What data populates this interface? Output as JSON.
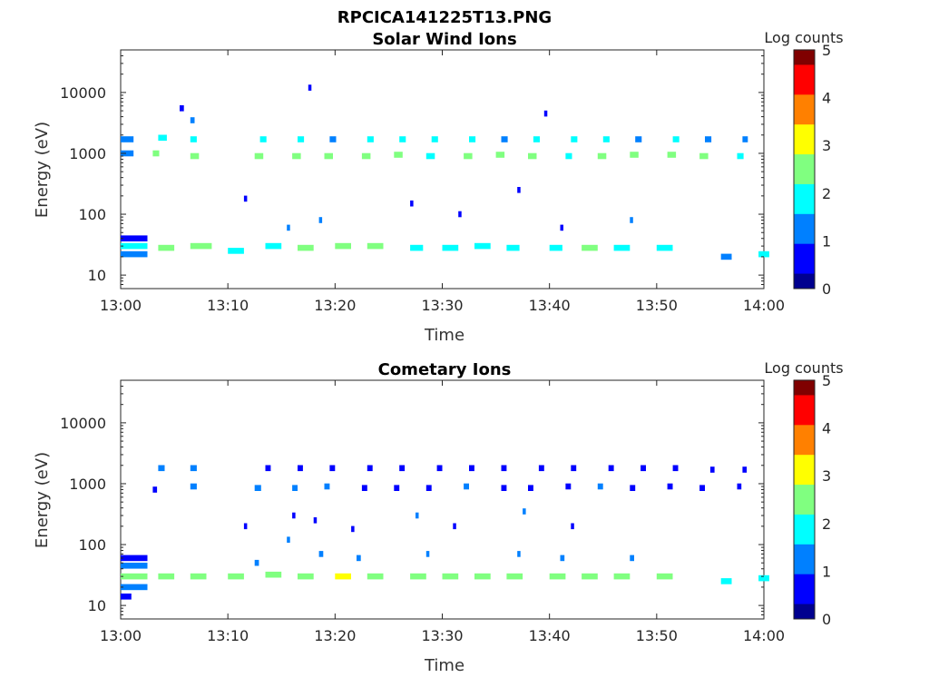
{
  "figure": {
    "title": "RPCICA141225T13.PNG"
  },
  "colormap": [
    "#00008f",
    "#0000ff",
    "#0080ff",
    "#00ffff",
    "#80ff80",
    "#ffff00",
    "#ff8000",
    "#ff0000",
    "#800000"
  ],
  "chart_data": [
    {
      "type": "heatmap",
      "title": "Solar Wind Ions",
      "xlabel": "Time",
      "ylabel": "Energy (eV)",
      "y_scale": "log",
      "ylim": [
        6,
        50000
      ],
      "xlim": [
        "13:00",
        "14:00"
      ],
      "x_ticks": [
        "13:00",
        "13:10",
        "13:20",
        "13:30",
        "13:40",
        "13:50",
        "14:00"
      ],
      "y_ticks": [
        "10",
        "100",
        "1000",
        "10000"
      ],
      "colorbar": {
        "label": "Log counts",
        "range": [
          0,
          5
        ],
        "ticks": [
          "0",
          "1",
          "2",
          "3",
          "4",
          "5"
        ]
      },
      "cells": [
        [
          0.0,
          2.5,
          30,
          2.0
        ],
        [
          0.0,
          2.5,
          22,
          1.2
        ],
        [
          0.0,
          2.5,
          40,
          0.8
        ],
        [
          3.5,
          1.5,
          28,
          2.2
        ],
        [
          6.5,
          2.0,
          30,
          2.5
        ],
        [
          10.0,
          1.5,
          25,
          1.8
        ],
        [
          13.5,
          1.5,
          30,
          2.0
        ],
        [
          16.5,
          1.5,
          28,
          2.3
        ],
        [
          20.0,
          1.5,
          30,
          2.2
        ],
        [
          23.0,
          1.5,
          30,
          2.8
        ],
        [
          27.0,
          1.2,
          28,
          2.0
        ],
        [
          30.0,
          1.5,
          28,
          1.8
        ],
        [
          33.0,
          1.5,
          30,
          1.6
        ],
        [
          36.0,
          1.2,
          28,
          2.0
        ],
        [
          40.0,
          1.2,
          28,
          2.0
        ],
        [
          43.0,
          1.5,
          28,
          2.2
        ],
        [
          46.0,
          1.5,
          28,
          2.0
        ],
        [
          50.0,
          1.5,
          28,
          1.8
        ],
        [
          56.0,
          1.0,
          20,
          1.2
        ],
        [
          59.5,
          1.0,
          22,
          1.8
        ],
        [
          0.0,
          1.2,
          1000,
          1.5
        ],
        [
          3.0,
          0.6,
          1000,
          2.2
        ],
        [
          6.5,
          0.8,
          900,
          2.8
        ],
        [
          12.5,
          0.8,
          900,
          2.3
        ],
        [
          16.0,
          0.8,
          900,
          2.5
        ],
        [
          19.0,
          0.8,
          900,
          2.4
        ],
        [
          22.5,
          0.8,
          900,
          2.6
        ],
        [
          25.5,
          0.8,
          950,
          2.3
        ],
        [
          28.5,
          0.8,
          900,
          2.0
        ],
        [
          32.0,
          0.8,
          900,
          2.4
        ],
        [
          35.0,
          0.8,
          950,
          2.3
        ],
        [
          38.0,
          0.8,
          900,
          2.5
        ],
        [
          41.5,
          0.6,
          900,
          2.0
        ],
        [
          44.5,
          0.8,
          900,
          2.6
        ],
        [
          47.5,
          0.8,
          950,
          2.2
        ],
        [
          51.0,
          0.8,
          950,
          2.5
        ],
        [
          54.0,
          0.8,
          900,
          2.3
        ],
        [
          57.5,
          0.6,
          900,
          1.6
        ],
        [
          0.0,
          1.2,
          1700,
          1.0
        ],
        [
          3.5,
          0.8,
          1800,
          1.8
        ],
        [
          6.5,
          0.6,
          1700,
          2.0
        ],
        [
          13.0,
          0.6,
          1700,
          1.6
        ],
        [
          16.5,
          0.6,
          1700,
          1.8
        ],
        [
          19.5,
          0.6,
          1700,
          1.5
        ],
        [
          23.0,
          0.6,
          1700,
          1.7
        ],
        [
          26.0,
          0.6,
          1700,
          1.6
        ],
        [
          29.0,
          0.6,
          1700,
          1.8
        ],
        [
          32.5,
          0.6,
          1700,
          1.6
        ],
        [
          35.5,
          0.6,
          1700,
          1.5
        ],
        [
          38.5,
          0.6,
          1700,
          1.7
        ],
        [
          42.0,
          0.6,
          1700,
          1.6
        ],
        [
          45.0,
          0.6,
          1700,
          1.8
        ],
        [
          48.0,
          0.6,
          1700,
          1.5
        ],
        [
          51.5,
          0.6,
          1700,
          1.6
        ],
        [
          54.5,
          0.6,
          1700,
          1.4
        ],
        [
          58.0,
          0.5,
          1700,
          1.0
        ],
        [
          6.5,
          0.4,
          3500,
          1.0
        ],
        [
          5.5,
          0.4,
          5500,
          0.8
        ],
        [
          17.5,
          0.3,
          12000,
          0.8
        ],
        [
          39.5,
          0.3,
          4500,
          0.8
        ],
        [
          15.5,
          0.3,
          60,
          1.0
        ],
        [
          18.5,
          0.3,
          80,
          1.0
        ],
        [
          27.0,
          0.3,
          150,
          0.8
        ],
        [
          37.0,
          0.3,
          250,
          0.9
        ],
        [
          47.5,
          0.3,
          80,
          1.2
        ],
        [
          11.5,
          0.3,
          180,
          0.8
        ],
        [
          31.5,
          0.3,
          100,
          0.8
        ],
        [
          41.0,
          0.3,
          60,
          0.9
        ]
      ]
    },
    {
      "type": "heatmap",
      "title": "Cometary Ions",
      "xlabel": "Time",
      "ylabel": "Energy (eV)",
      "y_scale": "log",
      "ylim": [
        6,
        50000
      ],
      "xlim": [
        "13:00",
        "14:00"
      ],
      "x_ticks": [
        "13:00",
        "13:10",
        "13:20",
        "13:30",
        "13:40",
        "13:50",
        "14:00"
      ],
      "y_ticks": [
        "10",
        "100",
        "1000",
        "10000"
      ],
      "colorbar": {
        "label": "Log counts",
        "range": [
          0,
          5
        ],
        "ticks": [
          "0",
          "1",
          "2",
          "3",
          "4",
          "5"
        ]
      },
      "cells": [
        [
          0.0,
          2.5,
          30,
          2.5
        ],
        [
          0.0,
          2.5,
          20,
          1.5
        ],
        [
          0.0,
          2.5,
          45,
          1.2
        ],
        [
          0.0,
          2.5,
          60,
          0.8
        ],
        [
          0.0,
          1.0,
          14,
          0.8
        ],
        [
          3.5,
          1.5,
          30,
          2.4
        ],
        [
          6.5,
          1.5,
          30,
          2.8
        ],
        [
          10.0,
          1.5,
          30,
          2.6
        ],
        [
          13.5,
          1.5,
          32,
          2.8
        ],
        [
          16.5,
          1.5,
          30,
          2.7
        ],
        [
          20.0,
          1.5,
          30,
          2.9
        ],
        [
          23.0,
          1.5,
          30,
          2.8
        ],
        [
          27.0,
          1.5,
          30,
          2.5
        ],
        [
          30.0,
          1.5,
          30,
          2.4
        ],
        [
          33.0,
          1.5,
          30,
          2.2
        ],
        [
          36.0,
          1.5,
          30,
          2.3
        ],
        [
          40.0,
          1.5,
          30,
          2.6
        ],
        [
          43.0,
          1.5,
          30,
          2.4
        ],
        [
          46.0,
          1.5,
          30,
          2.7
        ],
        [
          50.0,
          1.5,
          30,
          2.3
        ],
        [
          56.0,
          1.0,
          25,
          1.6
        ],
        [
          59.5,
          1.0,
          28,
          2.0
        ],
        [
          12.5,
          0.4,
          50,
          1.2
        ],
        [
          15.5,
          0.3,
          120,
          1.0
        ],
        [
          18.5,
          0.4,
          70,
          1.3
        ],
        [
          22.0,
          0.4,
          60,
          1.0
        ],
        [
          28.5,
          0.3,
          70,
          1.2
        ],
        [
          37.0,
          0.3,
          70,
          1.2
        ],
        [
          41.0,
          0.4,
          60,
          1.0
        ],
        [
          47.5,
          0.4,
          60,
          1.3
        ],
        [
          11.5,
          0.3,
          200,
          0.8
        ],
        [
          16.0,
          0.3,
          300,
          0.9
        ],
        [
          18.0,
          0.3,
          250,
          0.9
        ],
        [
          21.5,
          0.3,
          180,
          0.8
        ],
        [
          27.5,
          0.3,
          300,
          1.0
        ],
        [
          31.0,
          0.3,
          200,
          0.8
        ],
        [
          37.5,
          0.3,
          350,
          1.0
        ],
        [
          42.0,
          0.3,
          200,
          0.8
        ],
        [
          3.0,
          0.4,
          800,
          0.8
        ],
        [
          6.5,
          0.6,
          900,
          1.2
        ],
        [
          12.5,
          0.6,
          850,
          1.0
        ],
        [
          16.0,
          0.5,
          850,
          1.0
        ],
        [
          19.0,
          0.5,
          900,
          1.0
        ],
        [
          22.5,
          0.5,
          850,
          0.9
        ],
        [
          25.5,
          0.5,
          850,
          0.8
        ],
        [
          28.5,
          0.5,
          850,
          0.9
        ],
        [
          32.0,
          0.5,
          900,
          1.0
        ],
        [
          35.5,
          0.5,
          850,
          0.9
        ],
        [
          38.0,
          0.5,
          850,
          0.8
        ],
        [
          41.5,
          0.5,
          900,
          0.8
        ],
        [
          44.5,
          0.5,
          900,
          1.0
        ],
        [
          47.5,
          0.5,
          850,
          0.8
        ],
        [
          51.0,
          0.5,
          900,
          0.9
        ],
        [
          54.0,
          0.5,
          850,
          0.8
        ],
        [
          57.5,
          0.4,
          900,
          0.8
        ],
        [
          3.5,
          0.6,
          1800,
          1.0
        ],
        [
          6.5,
          0.6,
          1800,
          1.1
        ],
        [
          13.5,
          0.5,
          1800,
          0.9
        ],
        [
          16.5,
          0.5,
          1800,
          0.9
        ],
        [
          19.5,
          0.5,
          1800,
          0.8
        ],
        [
          23.0,
          0.5,
          1800,
          0.9
        ],
        [
          26.0,
          0.5,
          1800,
          0.9
        ],
        [
          29.5,
          0.5,
          1800,
          0.8
        ],
        [
          32.5,
          0.5,
          1800,
          0.9
        ],
        [
          35.5,
          0.5,
          1800,
          0.8
        ],
        [
          39.0,
          0.5,
          1800,
          0.9
        ],
        [
          42.0,
          0.5,
          1800,
          0.8
        ],
        [
          45.5,
          0.5,
          1800,
          0.9
        ],
        [
          48.5,
          0.5,
          1800,
          0.8
        ],
        [
          51.5,
          0.5,
          1800,
          0.8
        ],
        [
          55.0,
          0.4,
          1700,
          0.8
        ],
        [
          58.0,
          0.4,
          1700,
          0.8
        ]
      ]
    }
  ]
}
